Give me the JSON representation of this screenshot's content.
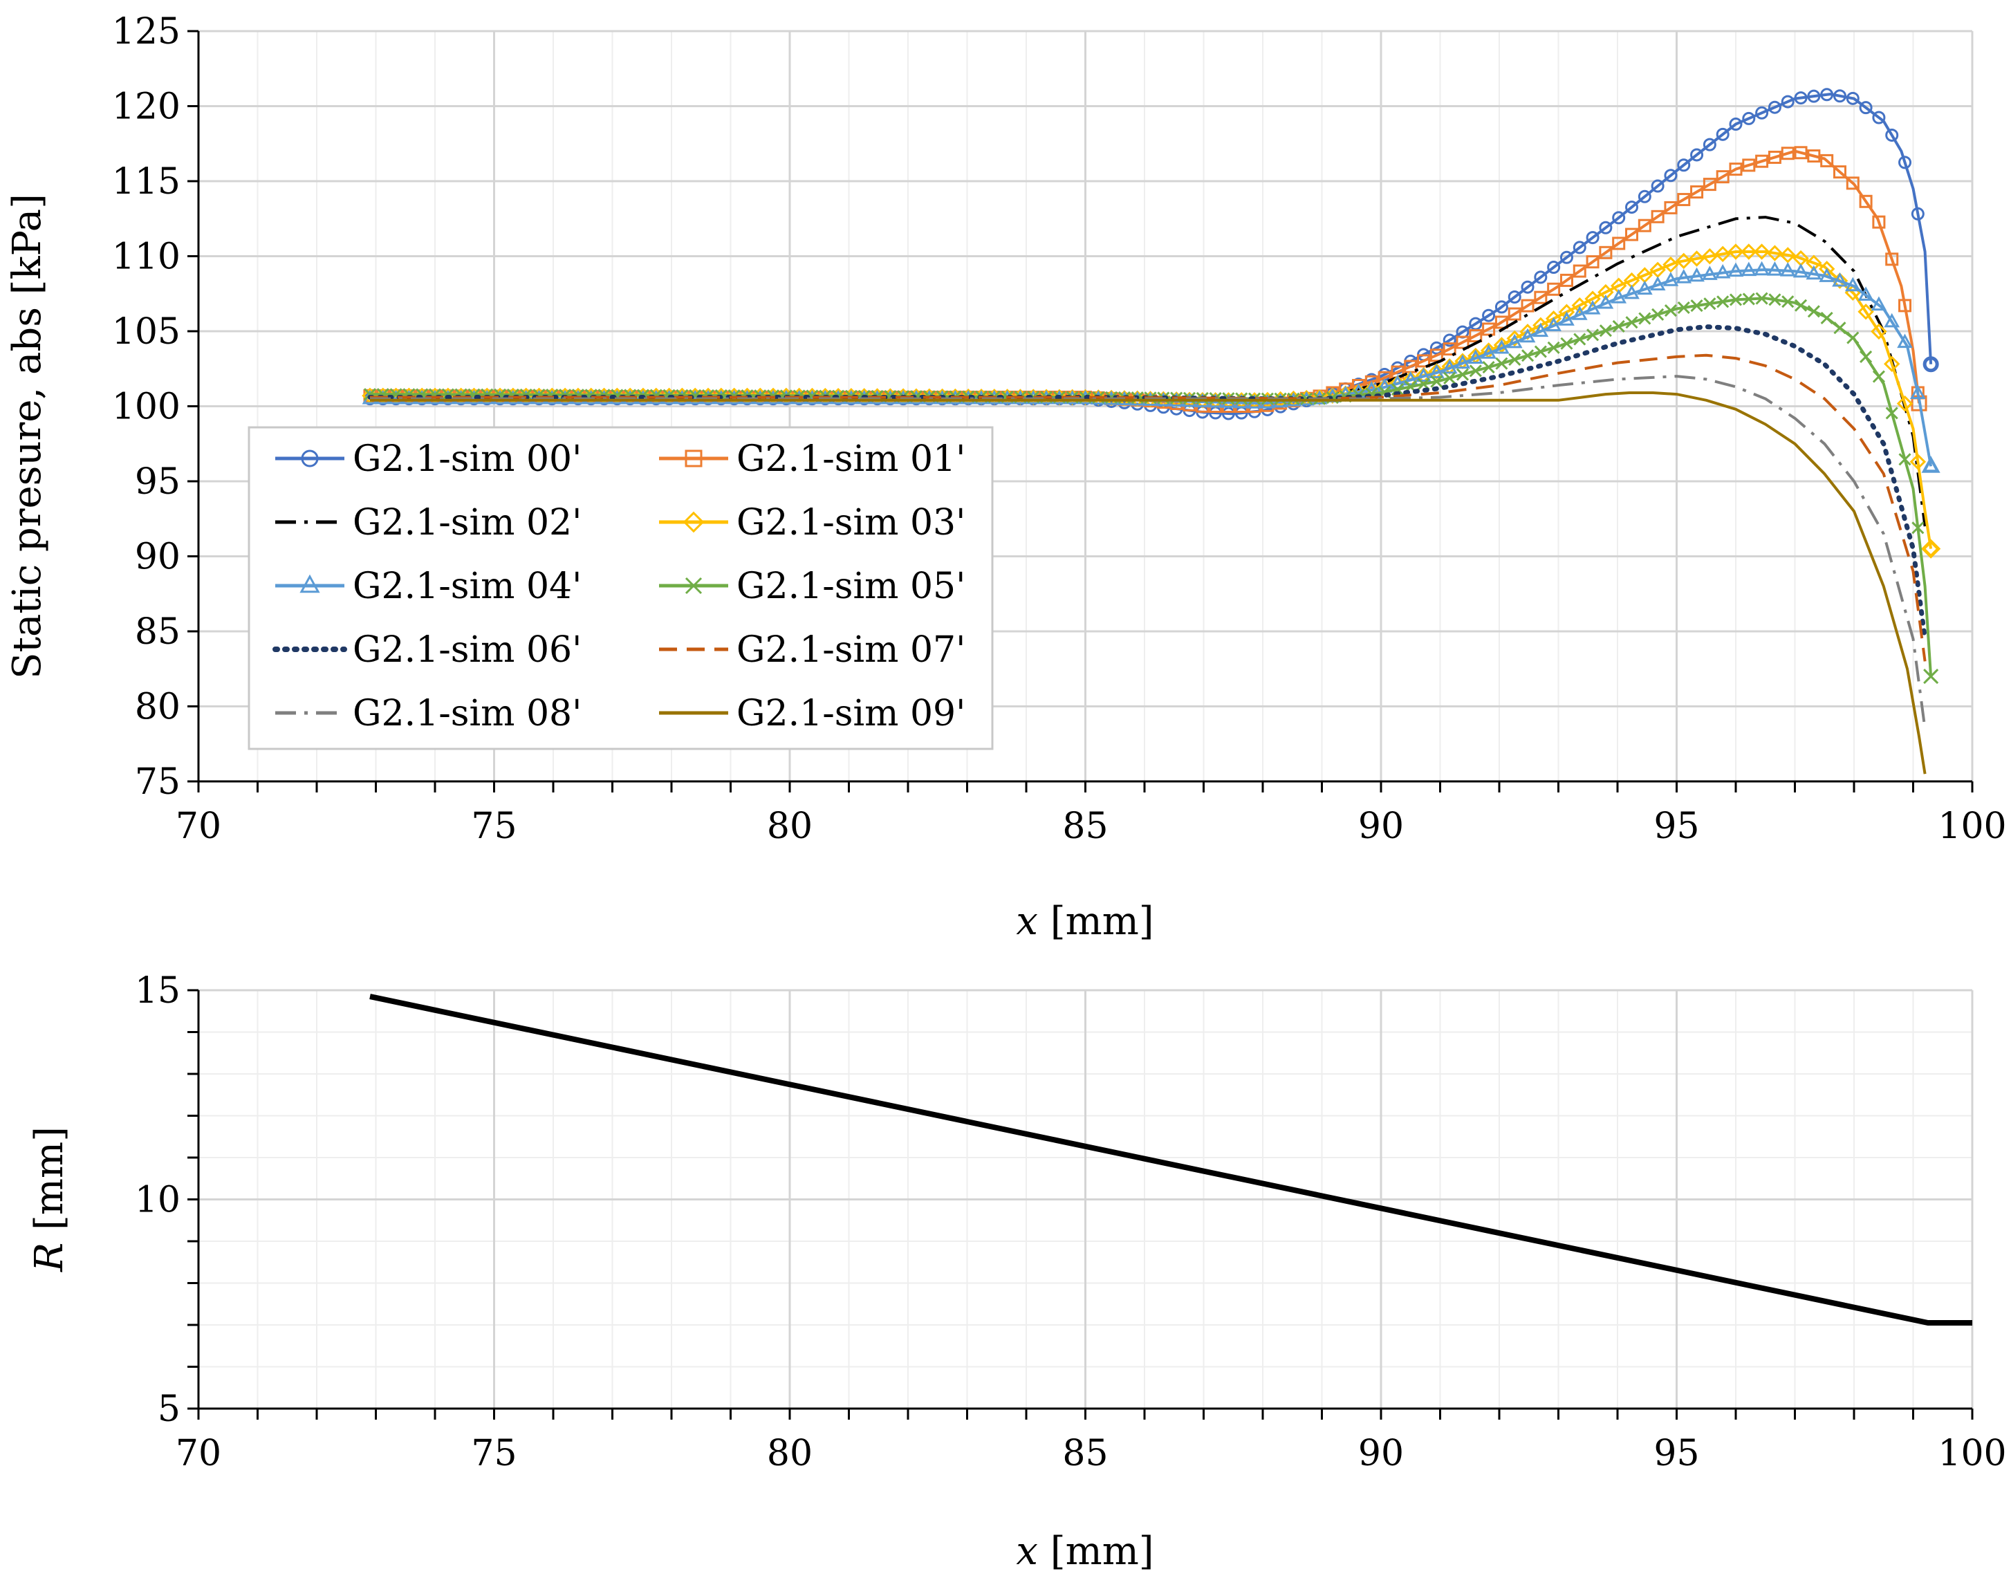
{
  "chart_data": [
    {
      "type": "line",
      "ylabel": "Static presure, abs [kPa]",
      "xlabel_var": "x",
      "xlabel_unit": " [mm]",
      "xlim": [
        70,
        100
      ],
      "ylim": [
        75,
        125
      ],
      "xticks": [
        "70",
        "75",
        "80",
        "85",
        "90",
        "95",
        "100"
      ],
      "yticks": [
        "75",
        "80",
        "85",
        "90",
        "95",
        "100",
        "105",
        "110",
        "115",
        "120",
        "125"
      ],
      "grid": true,
      "legend_position": "lower-left",
      "series": [
        {
          "name": "G2.1-sim 00'",
          "color": "#4472C4",
          "marker": "circle",
          "dash": "solid",
          "x": [
            72.9,
            80,
            85,
            86,
            87,
            87.5,
            88,
            89,
            90,
            91,
            92,
            93,
            94,
            95,
            96,
            97,
            97.6,
            98,
            98.5,
            98.8,
            99.0,
            99.2,
            99.3
          ],
          "y": [
            100.5,
            100.5,
            100.5,
            100.1,
            99.6,
            99.5,
            99.7,
            100.6,
            102.0,
            104.0,
            106.5,
            109.5,
            112.5,
            115.7,
            118.8,
            120.5,
            120.8,
            120.5,
            119.0,
            117.0,
            114.5,
            110.3,
            102.8
          ]
        },
        {
          "name": "G2.1-sim 01'",
          "color": "#ED7D31",
          "marker": "square",
          "dash": "solid",
          "x": [
            72.9,
            80,
            85,
            86,
            87,
            88,
            89,
            90,
            91,
            92,
            93,
            94,
            95,
            96,
            97,
            97.5,
            98,
            98.4,
            98.8,
            99.0,
            99.1
          ],
          "y": [
            100.7,
            100.6,
            100.6,
            100.4,
            100.0,
            100.0,
            100.7,
            101.8,
            103.5,
            105.5,
            108.0,
            110.8,
            113.5,
            115.8,
            117.0,
            116.5,
            114.8,
            112.5,
            108.0,
            103.7,
            100.2
          ]
        },
        {
          "name": "G2.1-sim 02'",
          "color": "#000000",
          "marker": "none",
          "dash": "dashdot",
          "x": [
            72.9,
            80,
            85,
            87,
            88,
            89,
            90,
            91,
            92,
            93,
            94,
            95,
            96,
            96.5,
            97,
            97.5,
            98,
            98.5,
            99.0,
            99.2
          ],
          "y": [
            100.7,
            100.7,
            100.6,
            100.3,
            100.3,
            100.6,
            101.5,
            103.0,
            105.0,
            107.3,
            109.5,
            111.3,
            112.5,
            112.6,
            112.2,
            111.0,
            109.0,
            105.0,
            98.0,
            92.0
          ]
        },
        {
          "name": "G2.1-sim 03'",
          "color": "#FFC000",
          "marker": "diamond",
          "dash": "solid",
          "x": [
            72.9,
            80,
            85,
            87,
            88,
            89,
            90,
            91,
            92,
            93,
            94,
            95,
            96,
            96.5,
            97,
            97.5,
            98,
            98.5,
            99.0,
            99.2,
            99.3
          ],
          "y": [
            100.7,
            100.7,
            100.6,
            100.4,
            100.4,
            100.6,
            101.2,
            102.4,
            104.0,
            106.0,
            108.0,
            109.6,
            110.3,
            110.3,
            110.0,
            109.3,
            107.5,
            104.5,
            98.5,
            93.0,
            90.5
          ]
        },
        {
          "name": "G2.1-sim 04'",
          "color": "#5B9BD5",
          "marker": "triangle",
          "dash": "solid",
          "x": [
            72.9,
            80,
            85,
            87,
            88,
            89,
            90,
            91,
            92,
            93,
            94,
            95,
            96,
            96.5,
            97,
            97.5,
            98,
            98.5,
            98.9,
            99.1,
            99.3
          ],
          "y": [
            100.5,
            100.5,
            100.5,
            100.3,
            100.2,
            100.5,
            101.2,
            102.3,
            103.8,
            105.5,
            107.2,
            108.5,
            109.0,
            109.1,
            109.0,
            108.7,
            108.0,
            106.5,
            104.0,
            100.5,
            96.0
          ]
        },
        {
          "name": "G2.1-sim 05'",
          "color": "#70AD47",
          "marker": "x",
          "dash": "solid",
          "x": [
            72.9,
            80,
            85,
            88,
            89,
            90,
            91,
            92,
            93,
            94,
            95,
            96,
            96.5,
            97,
            97.5,
            98,
            98.5,
            99.0,
            99.2,
            99.3
          ],
          "y": [
            100.8,
            100.7,
            100.6,
            100.5,
            100.5,
            100.9,
            101.7,
            102.8,
            104.0,
            105.3,
            106.5,
            107.1,
            107.2,
            106.9,
            106.0,
            104.5,
            101.5,
            94.5,
            88.0,
            82.0
          ]
        },
        {
          "name": "G2.1-sim 06'",
          "color": "#1F3864",
          "marker": "none",
          "dash": "dotted",
          "x": [
            72.9,
            80,
            85,
            88,
            89,
            90,
            91,
            92,
            93,
            94,
            95,
            95.5,
            96,
            96.5,
            97,
            97.5,
            98,
            98.5,
            99.0,
            99.2
          ],
          "y": [
            100.6,
            100.6,
            100.6,
            100.5,
            100.5,
            100.7,
            101.2,
            102.0,
            103.0,
            104.2,
            105.1,
            105.3,
            105.2,
            104.8,
            104.0,
            102.8,
            100.8,
            97.5,
            90.5,
            84.5
          ]
        },
        {
          "name": "G2.1-sim 07'",
          "color": "#C55A11",
          "marker": "none",
          "dash": "dashed",
          "x": [
            72.9,
            80,
            85,
            89,
            90,
            91,
            92,
            93,
            94,
            95,
            95.5,
            96,
            96.5,
            97,
            97.5,
            98,
            98.5,
            99.0,
            99.2
          ],
          "y": [
            100.6,
            100.6,
            100.6,
            100.5,
            100.6,
            100.9,
            101.4,
            102.2,
            102.9,
            103.3,
            103.4,
            103.2,
            102.7,
            101.8,
            100.5,
            98.5,
            95.5,
            89.0,
            83.0
          ]
        },
        {
          "name": "G2.1-sim 08'",
          "color": "#7F7F7F",
          "marker": "none",
          "dash": "dashdot",
          "x": [
            72.9,
            80,
            85,
            90,
            91,
            92,
            93,
            94,
            94.5,
            95,
            95.5,
            96,
            96.5,
            97,
            97.5,
            98,
            98.5,
            99.0,
            99.2
          ],
          "y": [
            100.5,
            100.5,
            100.5,
            100.5,
            100.6,
            100.9,
            101.4,
            101.8,
            101.9,
            102.0,
            101.8,
            101.3,
            100.5,
            99.2,
            97.5,
            95.0,
            91.5,
            84.5,
            78.5
          ]
        },
        {
          "name": "G2.1-sim 09'",
          "color": "#997300",
          "marker": "none",
          "dash": "solid",
          "x": [
            72.9,
            80,
            85,
            90,
            93,
            93.4,
            93.8,
            94.2,
            94.6,
            95,
            95.5,
            96,
            96.5,
            97,
            97.5,
            98,
            98.5,
            98.9,
            99.1,
            99.2
          ],
          "y": [
            100.4,
            100.4,
            100.4,
            100.4,
            100.4,
            100.6,
            100.8,
            100.9,
            100.9,
            100.8,
            100.4,
            99.8,
            98.8,
            97.5,
            95.5,
            93.0,
            88.0,
            82.5,
            78.0,
            75.5
          ]
        }
      ]
    },
    {
      "type": "line",
      "ylabel_var": "R",
      "ylabel_unit": " [mm]",
      "xlabel_var": "x",
      "xlabel_unit": " [mm]",
      "xlim": [
        70,
        100
      ],
      "ylim": [
        5,
        15
      ],
      "xticks": [
        "70",
        "75",
        "80",
        "85",
        "90",
        "95",
        "100"
      ],
      "yticks": [
        "5",
        "10",
        "15"
      ],
      "grid": true,
      "series": [
        {
          "name": "R",
          "color": "#000000",
          "marker": "none",
          "dash": "solid",
          "x": [
            72.9,
            99.25,
            100
          ],
          "y": [
            14.85,
            7.05,
            7.05
          ]
        }
      ]
    }
  ]
}
